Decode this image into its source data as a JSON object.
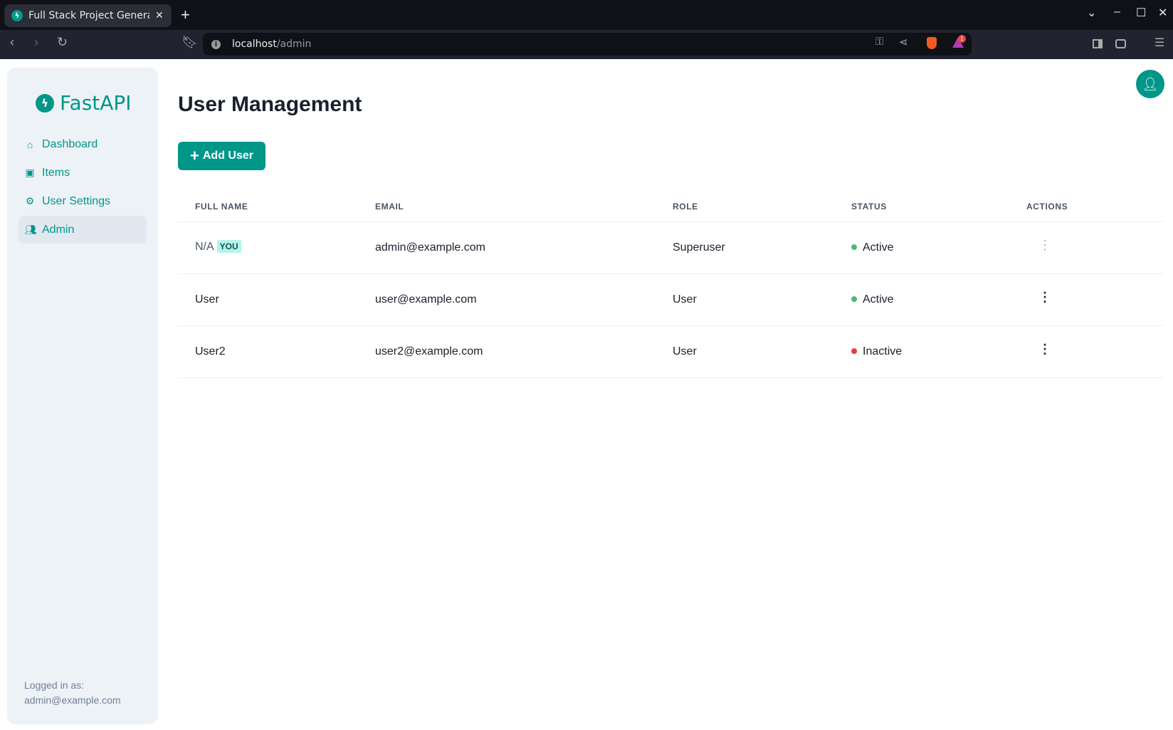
{
  "browser": {
    "tab_title": "Full Stack Project Genera",
    "url_host": "localhost",
    "url_path": "/admin",
    "shield_badge": "1"
  },
  "sidebar": {
    "logo": "FastAPI",
    "items": [
      {
        "label": "Dashboard",
        "icon": "home-icon"
      },
      {
        "label": "Items",
        "icon": "briefcase-icon"
      },
      {
        "label": "User Settings",
        "icon": "gear-icon"
      },
      {
        "label": "Admin",
        "icon": "users-icon",
        "active": true
      }
    ],
    "footer_label": "Logged in as:",
    "footer_email": "admin@example.com"
  },
  "main": {
    "title": "User Management",
    "add_button": "Add User",
    "columns": [
      "FULL NAME",
      "EMAIL",
      "ROLE",
      "STATUS",
      "ACTIONS"
    ],
    "rows": [
      {
        "name": "N/A",
        "badge": "YOU",
        "email": "admin@example.com",
        "role": "Superuser",
        "status": "Active",
        "status_color": "#48bb78"
      },
      {
        "name": "User",
        "email": "user@example.com",
        "role": "User",
        "status": "Active",
        "status_color": "#48bb78"
      },
      {
        "name": "User2",
        "email": "user2@example.com",
        "role": "User",
        "status": "Inactive",
        "status_color": "#e53e3e"
      }
    ]
  },
  "colors": {
    "accent": "#009688"
  }
}
